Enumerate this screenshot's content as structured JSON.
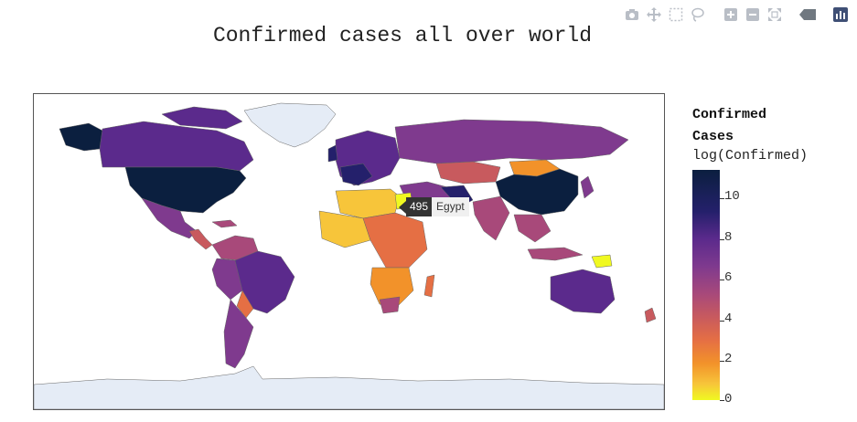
{
  "title": "Confirmed cases all over world",
  "modebar": {
    "buttons": [
      "camera-icon",
      "pan-icon",
      "box-select-icon",
      "lasso-icon",
      "zoom-in-icon",
      "zoom-out-icon",
      "reset-icon",
      "hover-icon",
      "plotly-logo-icon"
    ]
  },
  "legend": {
    "title_line1": "Confirmed",
    "title_line2": "Cases",
    "subtitle": "log(Confirmed)",
    "ticks": [
      "10",
      "8",
      "6",
      "4",
      "2",
      "0"
    ]
  },
  "tooltip": {
    "value": "495",
    "country": "Egypt"
  },
  "colors": {
    "ocean": "#ffffff",
    "no_data": "#e5ecf6",
    "scale_high": "#0b1f3f",
    "scale_low": "#f0f921"
  }
}
